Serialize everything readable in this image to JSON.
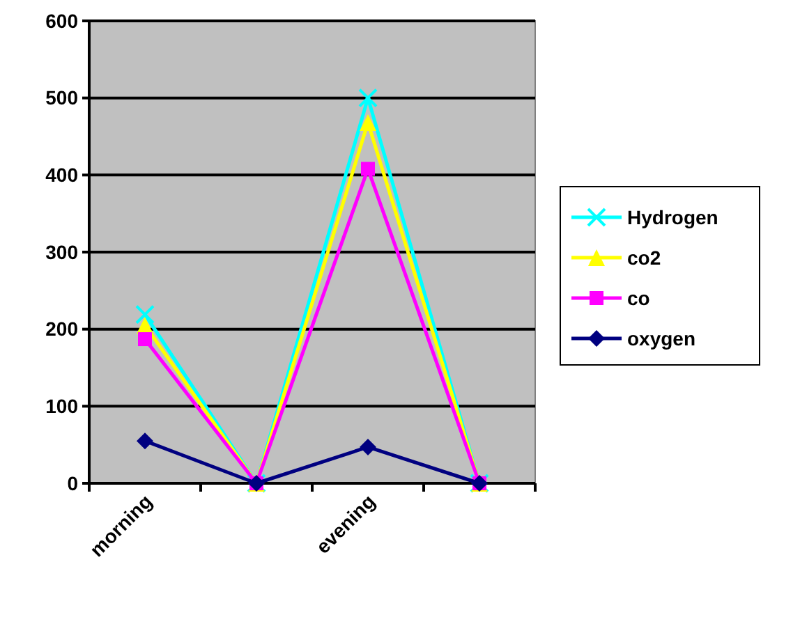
{
  "chart_data": {
    "type": "line",
    "categories": [
      "morning",
      null,
      "evening",
      null
    ],
    "series": [
      {
        "name": "Hydrogen",
        "color": "#00ffff",
        "marker": "cross",
        "values": [
          219,
          0,
          500,
          0
        ]
      },
      {
        "name": "co2",
        "color": "#ffff00",
        "marker": "triangle",
        "values": [
          205,
          0,
          468,
          0
        ]
      },
      {
        "name": "co",
        "color": "#ff00ff",
        "marker": "square",
        "values": [
          187,
          0,
          408,
          0
        ]
      },
      {
        "name": "oxygen",
        "color": "#000080",
        "marker": "diamond",
        "values": [
          55,
          0,
          47,
          0
        ]
      }
    ],
    "ylim": [
      0,
      600
    ],
    "yticks": [
      0,
      100,
      200,
      300,
      400,
      500,
      600
    ],
    "grid": "y",
    "legend": "right"
  }
}
